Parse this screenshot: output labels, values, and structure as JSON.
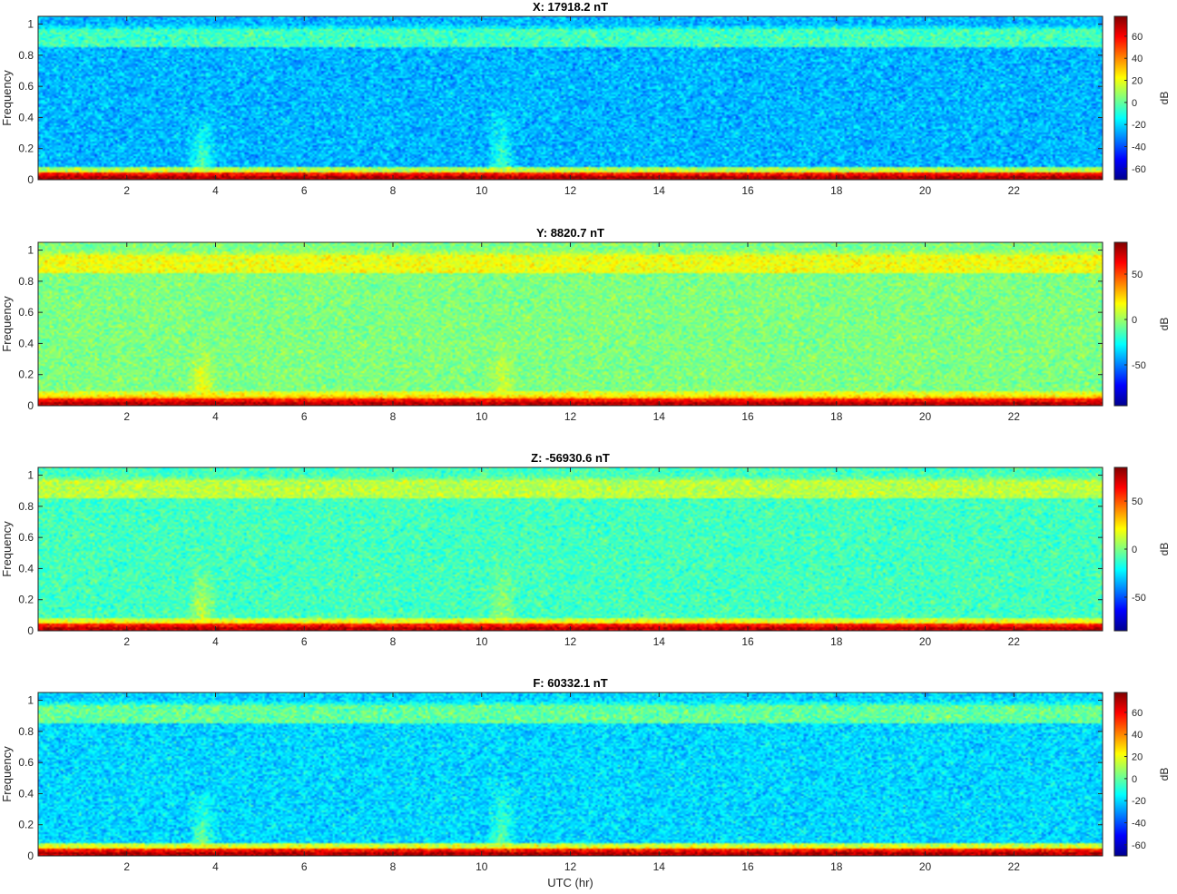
{
  "figure": {
    "xlabel": "UTC (hr)",
    "ylabel": "Frequency",
    "colorbar_label": "dB"
  },
  "colormap": [
    "#00008f",
    "#0000ff",
    "#0080ff",
    "#00ffff",
    "#80ff80",
    "#ffff00",
    "#ff8000",
    "#ff0000",
    "#800000"
  ],
  "chart_data": [
    {
      "type": "heatmap",
      "title": "X: 17918.2 nT",
      "ylabel": "Frequency",
      "x_ticks": [
        2,
        4,
        6,
        8,
        10,
        12,
        14,
        16,
        18,
        20,
        22
      ],
      "y_ticks": [
        0,
        0.2,
        0.4,
        0.6,
        0.8,
        1
      ],
      "xlim": [
        0,
        24
      ],
      "ylim": [
        0,
        1.05
      ],
      "colorbar": {
        "label": "dB",
        "ticks": [
          -60,
          -40,
          -20,
          0,
          20,
          40,
          60
        ],
        "clim": [
          -70,
          78
        ]
      },
      "background_db": -25,
      "features": [
        {
          "kind": "band",
          "freq": [
            0.0,
            0.02
          ],
          "db": 72
        },
        {
          "kind": "band",
          "freq": [
            0.02,
            0.05
          ],
          "db": 25
        },
        {
          "kind": "band",
          "freq": [
            0.85,
            0.97
          ],
          "db": -5
        },
        {
          "kind": "burst",
          "time_hr": 3.7,
          "freq_max": 0.45,
          "db": 5
        },
        {
          "kind": "burst",
          "time_hr": 10.45,
          "freq_max": 0.55,
          "db": 0
        }
      ]
    },
    {
      "type": "heatmap",
      "title": "Y: 8820.7 nT",
      "ylabel": "Frequency",
      "x_ticks": [
        2,
        4,
        6,
        8,
        10,
        12,
        14,
        16,
        18,
        20,
        22
      ],
      "y_ticks": [
        0,
        0.2,
        0.4,
        0.6,
        0.8,
        1
      ],
      "xlim": [
        0,
        24
      ],
      "ylim": [
        0,
        1.05
      ],
      "colorbar": {
        "label": "dB",
        "ticks": [
          -50,
          0,
          50
        ],
        "clim": [
          -95,
          85
        ]
      },
      "background_db": -5,
      "features": [
        {
          "kind": "band",
          "freq": [
            0.0,
            0.02
          ],
          "db": 75
        },
        {
          "kind": "band",
          "freq": [
            0.02,
            0.06
          ],
          "db": 30
        },
        {
          "kind": "band",
          "freq": [
            0.85,
            0.97
          ],
          "db": 15
        },
        {
          "kind": "burst",
          "time_hr": 3.7,
          "freq_max": 0.45,
          "db": 25
        },
        {
          "kind": "burst",
          "time_hr": 10.45,
          "freq_max": 0.5,
          "db": 15
        }
      ]
    },
    {
      "type": "heatmap",
      "title": "Z: -56930.6 nT",
      "ylabel": "Frequency",
      "x_ticks": [
        2,
        4,
        6,
        8,
        10,
        12,
        14,
        16,
        18,
        20,
        22
      ],
      "y_ticks": [
        0,
        0.2,
        0.4,
        0.6,
        0.8,
        1
      ],
      "xlim": [
        0,
        24
      ],
      "ylim": [
        0,
        1.05
      ],
      "colorbar": {
        "label": "dB",
        "ticks": [
          -50,
          0,
          50
        ],
        "clim": [
          -85,
          85
        ]
      },
      "background_db": -10,
      "features": [
        {
          "kind": "band",
          "freq": [
            0.0,
            0.02
          ],
          "db": 75
        },
        {
          "kind": "band",
          "freq": [
            0.02,
            0.05
          ],
          "db": 30
        },
        {
          "kind": "band",
          "freq": [
            0.85,
            0.97
          ],
          "db": 10
        },
        {
          "kind": "burst",
          "time_hr": 3.7,
          "freq_max": 0.45,
          "db": 20
        },
        {
          "kind": "burst",
          "time_hr": 10.45,
          "freq_max": 0.5,
          "db": 10
        }
      ]
    },
    {
      "type": "heatmap",
      "title": "F: 60332.1 nT",
      "ylabel": "Frequency",
      "xlabel": "UTC (hr)",
      "x_ticks": [
        2,
        4,
        6,
        8,
        10,
        12,
        14,
        16,
        18,
        20,
        22
      ],
      "y_ticks": [
        0,
        0.2,
        0.4,
        0.6,
        0.8,
        1
      ],
      "xlim": [
        0,
        24
      ],
      "ylim": [
        0,
        1.05
      ],
      "colorbar": {
        "label": "dB",
        "ticks": [
          -60,
          -40,
          -20,
          0,
          20,
          40,
          60
        ],
        "clim": [
          -70,
          78
        ]
      },
      "background_db": -20,
      "features": [
        {
          "kind": "band",
          "freq": [
            0.0,
            0.02
          ],
          "db": 72
        },
        {
          "kind": "band",
          "freq": [
            0.02,
            0.05
          ],
          "db": 30
        },
        {
          "kind": "band",
          "freq": [
            0.85,
            0.97
          ],
          "db": 0
        },
        {
          "kind": "burst",
          "time_hr": 3.7,
          "freq_max": 0.45,
          "db": 10
        },
        {
          "kind": "burst",
          "time_hr": 10.45,
          "freq_max": 0.55,
          "db": 5
        }
      ]
    }
  ]
}
